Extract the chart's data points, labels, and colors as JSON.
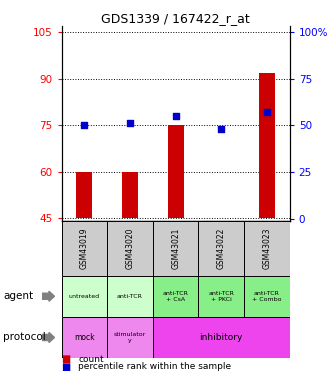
{
  "title": "GDS1339 / 167422_r_at",
  "samples": [
    "GSM43019",
    "GSM43020",
    "GSM43021",
    "GSM43022",
    "GSM43023"
  ],
  "count_values": [
    60,
    60,
    75,
    45,
    92
  ],
  "count_base": 45,
  "percentile_values": [
    50,
    51,
    55,
    48,
    57
  ],
  "left_yticks": [
    45,
    60,
    75,
    90,
    105
  ],
  "right_yticks": [
    0,
    25,
    50,
    75,
    100
  ],
  "right_ytick_labels": [
    "0",
    "25",
    "50",
    "75",
    "100%"
  ],
  "ylim_left": [
    44,
    107
  ],
  "ylim_right": [
    -1.3,
    103
  ],
  "agent_labels": [
    "untreated",
    "anti-TCR",
    "anti-TCR\n+ CsA",
    "anti-TCR\n+ PKCi",
    "anti-TCR\n+ Combo"
  ],
  "bar_color": "#cc0000",
  "dot_color": "#0000cc",
  "gsm_bg_color": "#cccccc",
  "agent_light_color": "#ccffcc",
  "agent_dark_color": "#88ee88",
  "protocol_light_color": "#ee88ee",
  "protocol_dark_color": "#ee44ee",
  "legend_count_color": "#cc0000",
  "legend_pct_color": "#0000cc"
}
